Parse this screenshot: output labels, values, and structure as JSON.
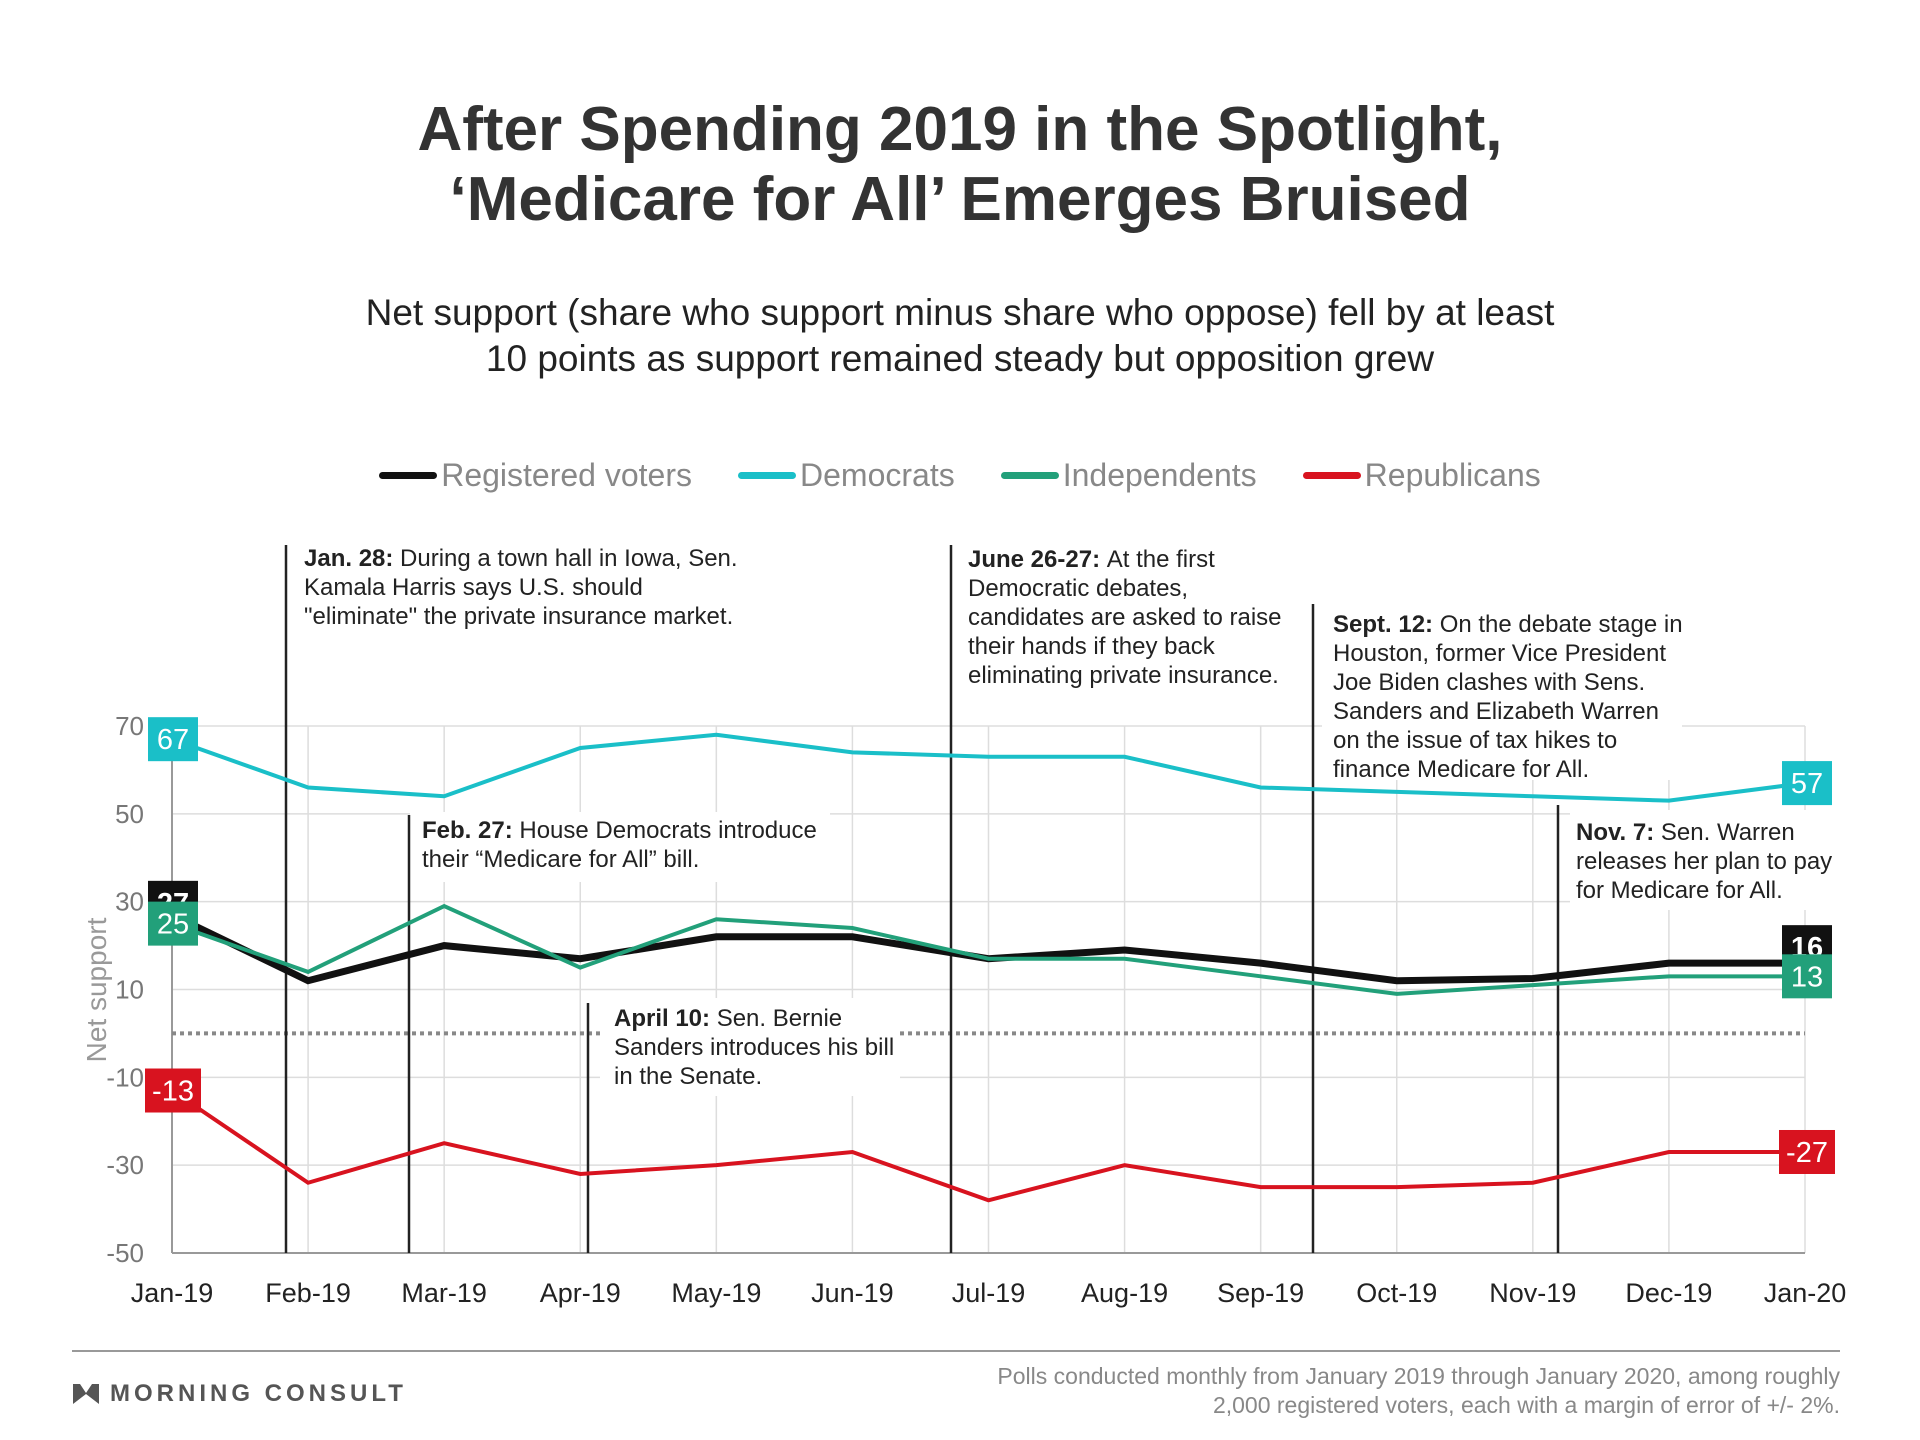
{
  "title": [
    "After Spending 2019 in the Spotlight,",
    "‘Medicare for All’ Emerges Bruised"
  ],
  "subtitle": [
    "Net support (share who support minus share who oppose) fell by at least",
    "10 points as support remained steady but opposition grew"
  ],
  "logo_text": "MORNING CONSULT",
  "source": [
    "Polls conducted monthly from January 2019 through January 2020, among roughly",
    "2,000 registered voters, each with a margin of error of +/- 2%."
  ],
  "chart_data": {
    "type": "line",
    "ylabel": "Net support",
    "xlabel": "",
    "ylim": [
      -50,
      70
    ],
    "yticks": [
      70,
      50,
      30,
      10,
      -10,
      -30,
      -50
    ],
    "grid": true,
    "legend_position": "top",
    "reference_line": 0,
    "categories": [
      "Jan-19",
      "Feb-19",
      "Mar-19",
      "Apr-19",
      "May-19",
      "Jun-19",
      "Jul-19",
      "Aug-19",
      "Sep-19",
      "Oct-19",
      "Nov-19",
      "Dec-19",
      "Jan-20"
    ],
    "series": [
      {
        "name": "Registered voters",
        "color": "#111111",
        "values": [
          27,
          12,
          20,
          17,
          22,
          22,
          17,
          19,
          16,
          12,
          12.5,
          16,
          16
        ],
        "start_label": "27",
        "end_label": "16"
      },
      {
        "name": "Democrats",
        "color": "#1ABFC8",
        "values": [
          67,
          56,
          54,
          65,
          68,
          64,
          63,
          63,
          56,
          55,
          54,
          53,
          57
        ],
        "start_label": "67",
        "end_label": "57"
      },
      {
        "name": "Independents",
        "color": "#22A07A",
        "values": [
          25,
          14,
          29,
          15,
          26,
          24,
          17,
          17,
          13,
          9,
          11,
          13,
          13
        ],
        "start_label": "25",
        "end_label": "13"
      },
      {
        "name": "Republicans",
        "color": "#D8131F",
        "values": [
          -13,
          -34,
          -25,
          -32,
          -30,
          -27,
          -38,
          -30,
          -35,
          -35,
          -34,
          -27,
          -27
        ],
        "start_label": "-13",
        "end_label": "-27"
      }
    ],
    "annotations": [
      {
        "date": "Jan. 28",
        "text": [
          "During a town hall in Iowa, Sen.",
          "Kamala Harris says U.S. should",
          "\"eliminate\" the private insurance market."
        ]
      },
      {
        "date": "Feb. 27",
        "text": [
          "House Democrats introduce",
          "their “Medicare for All” bill."
        ]
      },
      {
        "date": "April 10",
        "text": [
          "Sen. Bernie",
          "Sanders introduces his bill",
          "in the Senate."
        ]
      },
      {
        "date": "June 26-27",
        "text": [
          "At the first",
          "Democratic debates,",
          "candidates are asked to raise",
          "their hands if they back",
          "eliminating private insurance."
        ]
      },
      {
        "date": "Sept. 12",
        "text": [
          "On the debate stage in",
          "Houston, former Vice President",
          "Joe Biden clashes with Sens.",
          "Sanders and Elizabeth Warren",
          "on the issue of tax hikes to",
          "finance Medicare for All."
        ]
      },
      {
        "date": "Nov. 7",
        "text": [
          "Sen. Warren",
          "releases her plan to pay",
          "for Medicare for All."
        ]
      }
    ]
  }
}
